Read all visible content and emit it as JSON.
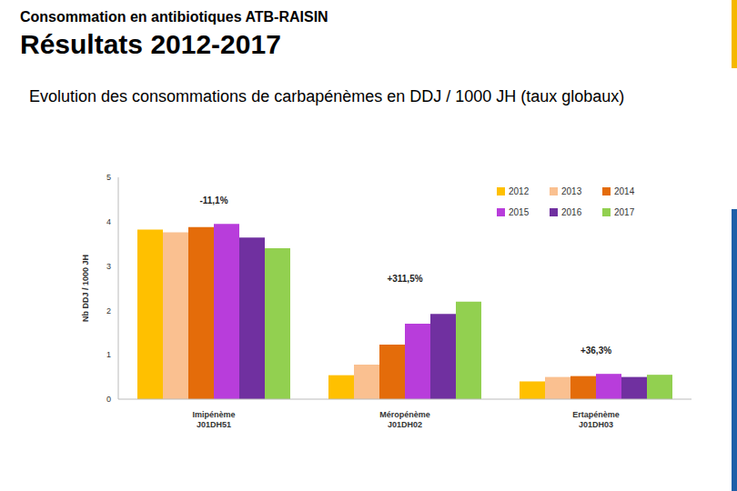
{
  "header": {
    "title": "Consommation en antibiotiques ATB-RAISIN",
    "heading": "Résultats 2012-2017",
    "subtitle": "Evolution des consommations de carbapénèmes en DDJ / 1000 JH (taux globaux)"
  },
  "chart_data": {
    "type": "bar",
    "y_label": "Nb DDJ / 1000 JH",
    "categories": [
      "Imipénème\nJ01DH51",
      "Méropénème\nJ01DH02",
      "Ertapénème\nJ01DH03"
    ],
    "series": [
      {
        "name": "2012",
        "color": "#FFC000",
        "values": [
          3.82,
          0.54,
          0.4
        ]
      },
      {
        "name": "2013",
        "color": "#FAC090",
        "values": [
          3.76,
          0.78,
          0.5
        ]
      },
      {
        "name": "2014",
        "color": "#E46C0A",
        "values": [
          3.88,
          1.23,
          0.52
        ]
      },
      {
        "name": "2015",
        "color": "#B83DDB",
        "values": [
          3.95,
          1.7,
          0.57
        ]
      },
      {
        "name": "2016",
        "color": "#7030A0",
        "values": [
          3.64,
          1.92,
          0.5
        ]
      },
      {
        "name": "2017",
        "color": "#92D050",
        "values": [
          3.4,
          2.2,
          0.55
        ]
      }
    ],
    "annotations": [
      "-11,1%",
      "+311,5%",
      "+36,3%"
    ],
    "ylim": [
      0,
      5
    ],
    "yticks": [
      0,
      1,
      2,
      3,
      4,
      5
    ],
    "grid": false,
    "legend": "top-right"
  }
}
